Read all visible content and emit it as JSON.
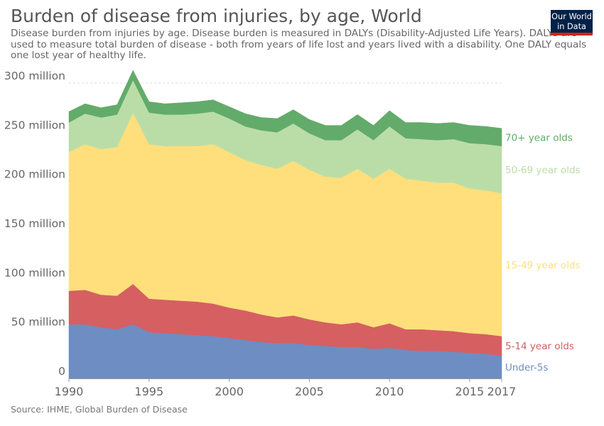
{
  "header": {
    "title": "Burden of disease from injuries, by age, World",
    "subtitle": "Disease burden from injuries by age. Disease burden is measured in DALYs (Disability-Adjusted Life Years). DALYs are used to measure total burden of disease - both from years of life lost and years lived with a disability. One DALY equals one lost year of healthy life."
  },
  "logo": {
    "line1": "Our World",
    "line2": "in Data"
  },
  "footer": {
    "source": "Source: IHME, Global Burden of Disease"
  },
  "chart_data": {
    "type": "area",
    "stacked": true,
    "title": "Burden of disease from injuries, by age, World",
    "xlabel": "",
    "ylabel": "",
    "xlim": [
      1990,
      2017
    ],
    "ylim": [
      0,
      300000000
    ],
    "grid": true,
    "legend": "labels at right end of each area",
    "x_ticks": [
      {
        "value": 1990,
        "label": "1990"
      },
      {
        "value": 1995,
        "label": "1995"
      },
      {
        "value": 2000,
        "label": "2000"
      },
      {
        "value": 2005,
        "label": "2005"
      },
      {
        "value": 2010,
        "label": "2010"
      },
      {
        "value": 2015,
        "label": "2015"
      },
      {
        "value": 2017,
        "label": "2017"
      }
    ],
    "y_ticks": [
      {
        "value": 0,
        "label": "0"
      },
      {
        "value": 50000000,
        "label": "50 million"
      },
      {
        "value": 100000000,
        "label": "100 million"
      },
      {
        "value": 150000000,
        "label": "150 million"
      },
      {
        "value": 200000000,
        "label": "200 million"
      },
      {
        "value": 250000000,
        "label": "250 million"
      },
      {
        "value": 300000000,
        "label": "300 million"
      }
    ],
    "x": [
      1990,
      1991,
      1992,
      1993,
      1994,
      1995,
      1996,
      1997,
      1998,
      1999,
      2000,
      2001,
      2002,
      2003,
      2004,
      2005,
      2006,
      2007,
      2008,
      2009,
      2010,
      2011,
      2012,
      2013,
      2014,
      2015,
      2016,
      2017
    ],
    "series": [
      {
        "name": "Under-5s",
        "color": "#6d8dc3",
        "values": [
          55000000,
          55000000,
          52000000,
          50000000,
          55000000,
          47000000,
          46000000,
          45000000,
          44000000,
          43000000,
          41000000,
          39000000,
          37000000,
          36000000,
          36000000,
          34000000,
          33000000,
          32000000,
          32000000,
          30000000,
          31000000,
          29000000,
          28000000,
          28000000,
          27000000,
          26000000,
          25000000,
          23000000
        ]
      },
      {
        "name": "5-14 year olds",
        "color": "#d65f62",
        "values": [
          34000000,
          35000000,
          33000000,
          34000000,
          41000000,
          34000000,
          34000000,
          34000000,
          34000000,
          33000000,
          31000000,
          30000000,
          28000000,
          26000000,
          28000000,
          26000000,
          24000000,
          23000000,
          25000000,
          22000000,
          25000000,
          21000000,
          22000000,
          21000000,
          21000000,
          20000000,
          20000000,
          20000000
        ]
      },
      {
        "name": "15-49 year olds",
        "color": "#fedf7c",
        "values": [
          141000000,
          148000000,
          148000000,
          151000000,
          174000000,
          157000000,
          156000000,
          157000000,
          158000000,
          162000000,
          158000000,
          153000000,
          152000000,
          151000000,
          157000000,
          152000000,
          148000000,
          149000000,
          156000000,
          151000000,
          157000000,
          153000000,
          151000000,
          150000000,
          151000000,
          147000000,
          146000000,
          145000000
        ]
      },
      {
        "name": "50-69 year olds",
        "color": "#badda8",
        "values": [
          30000000,
          31000000,
          32000000,
          33000000,
          33000000,
          32000000,
          32000000,
          32000000,
          33000000,
          33000000,
          34000000,
          34000000,
          35000000,
          37000000,
          38000000,
          37000000,
          37000000,
          38000000,
          40000000,
          39000000,
          43000000,
          41000000,
          42000000,
          43000000,
          44000000,
          46000000,
          47000000,
          48000000
        ]
      },
      {
        "name": "70+ year olds",
        "color": "#63ab6a",
        "values": [
          11000000,
          10000000,
          10000000,
          10000000,
          10000000,
          11000000,
          11000000,
          12000000,
          12000000,
          12000000,
          12000000,
          13000000,
          13000000,
          14000000,
          14000000,
          14000000,
          15000000,
          15000000,
          15000000,
          15000000,
          16000000,
          16000000,
          17000000,
          17000000,
          17000000,
          18000000,
          18000000,
          18000000
        ]
      }
    ]
  }
}
